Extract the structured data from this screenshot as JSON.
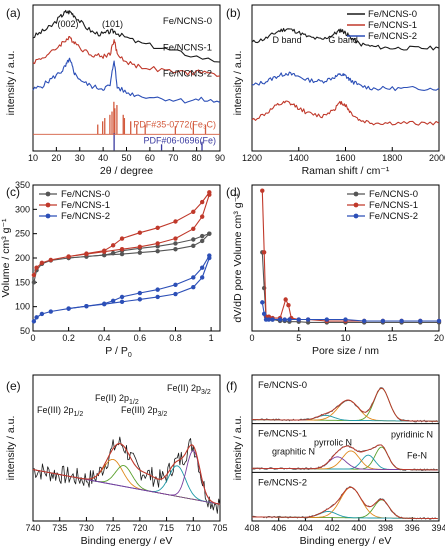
{
  "colors": {
    "black": "#1a1a1a",
    "red": "#c0392b",
    "blue": "#2c4fb7",
    "gray": "#555555",
    "fit_green": "#5aa02c",
    "fit_orange": "#e08a1e",
    "fit_purple": "#7b3fa0",
    "fit_teal": "#1f9aa8",
    "ref_fe3c": "#d35b3e",
    "ref_fe": "#3a3aa0"
  },
  "chart_data": [
    {
      "panel": "(a)",
      "type": "line",
      "xlabel": "2θ / degree",
      "ylabel": "intensity / a.u.",
      "xlim": [
        10,
        90
      ],
      "xticks": [
        10,
        20,
        30,
        40,
        50,
        60,
        70,
        80,
        90
      ],
      "peak_labels": [
        {
          "text": "(002)",
          "x": 25
        },
        {
          "text": "(101)",
          "x": 44
        }
      ],
      "series": [
        {
          "name": "Fe/NCNS-0",
          "color": "black",
          "x": [
            10,
            14,
            18,
            22,
            24,
            26,
            28,
            32,
            36,
            40,
            43,
            45,
            48,
            55,
            65,
            75,
            90
          ],
          "y": [
            0.82,
            0.86,
            0.9,
            0.97,
            1.0,
            1.0,
            0.97,
            0.9,
            0.85,
            0.84,
            0.86,
            0.86,
            0.83,
            0.78,
            0.74,
            0.7,
            0.64
          ]
        },
        {
          "name": "Fe/NCNS-1",
          "color": "red",
          "x": [
            10,
            14,
            18,
            22,
            24,
            26,
            28,
            32,
            36,
            40,
            43,
            44.7,
            46,
            50,
            55,
            65,
            75,
            82,
            90
          ],
          "y": [
            0.64,
            0.67,
            0.71,
            0.77,
            0.8,
            0.81,
            0.78,
            0.72,
            0.69,
            0.68,
            0.7,
            0.8,
            0.7,
            0.64,
            0.61,
            0.58,
            0.56,
            0.57,
            0.54
          ]
        },
        {
          "name": "Fe/NCNS-2",
          "color": "blue",
          "x": [
            10,
            14,
            18,
            22,
            24,
            25.5,
            26.5,
            28,
            32,
            36,
            40,
            43,
            44.7,
            46,
            50,
            55,
            65,
            75,
            82,
            90
          ],
          "y": [
            0.44,
            0.47,
            0.52,
            0.57,
            0.61,
            0.66,
            0.62,
            0.55,
            0.49,
            0.46,
            0.45,
            0.47,
            0.66,
            0.46,
            0.42,
            0.4,
            0.38,
            0.36,
            0.37,
            0.35
          ]
        }
      ],
      "reference_patterns": [
        {
          "name": "PDF#35-0772(Fe₃C)",
          "color": "ref_fe3c",
          "positions": [
            37.7,
            39.8,
            40.7,
            42.9,
            43.8,
            44.6,
            45.0,
            45.9,
            48.6,
            49.1,
            51.8,
            54.4,
            58.0,
            70.9,
            78.6,
            83.8
          ],
          "heights": [
            0.3,
            0.4,
            0.5,
            0.6,
            0.7,
            1.0,
            0.8,
            0.9,
            0.6,
            0.5,
            0.4,
            0.3,
            0.3,
            0.25,
            0.35,
            0.3
          ]
        },
        {
          "name": "PDF#06-0696(Fe)",
          "color": "ref_fe",
          "positions": [
            44.7,
            65.0,
            82.3
          ],
          "heights": [
            1.0,
            0.35,
            0.5
          ]
        }
      ]
    },
    {
      "panel": "(b)",
      "type": "line",
      "xlabel": "Raman shift / cm⁻¹",
      "ylabel": "intensity / a.u.",
      "xlim": [
        1200,
        2000
      ],
      "xticks": [
        1200,
        1400,
        1600,
        1800,
        2000
      ],
      "band_labels": [
        {
          "text": "D band",
          "x": 1350
        },
        {
          "text": "G band",
          "x": 1590
        }
      ],
      "series": [
        {
          "name": "Fe/NCNS-0",
          "color": "black",
          "x": [
            1200,
            1260,
            1310,
            1350,
            1390,
            1440,
            1500,
            1550,
            1580,
            1600,
            1620,
            1660,
            1720,
            1800,
            1900,
            2000
          ],
          "y": [
            0.78,
            0.81,
            0.86,
            0.88,
            0.86,
            0.82,
            0.8,
            0.84,
            0.87,
            0.85,
            0.82,
            0.77,
            0.75,
            0.74,
            0.74,
            0.74
          ]
        },
        {
          "name": "Fe/NCNS-1",
          "color": "red",
          "x": [
            1200,
            1260,
            1310,
            1350,
            1390,
            1440,
            1500,
            1550,
            1580,
            1600,
            1620,
            1660,
            1720,
            1800,
            1900,
            2000
          ],
          "y": [
            0.22,
            0.27,
            0.33,
            0.35,
            0.32,
            0.27,
            0.25,
            0.3,
            0.35,
            0.33,
            0.28,
            0.22,
            0.2,
            0.2,
            0.2,
            0.2
          ]
        },
        {
          "name": "Fe/NCNS-2",
          "color": "blue",
          "x": [
            1200,
            1260,
            1310,
            1350,
            1390,
            1440,
            1500,
            1550,
            1580,
            1600,
            1620,
            1660,
            1720,
            1800,
            1900,
            2000
          ],
          "y": [
            0.47,
            0.5,
            0.54,
            0.56,
            0.54,
            0.51,
            0.5,
            0.53,
            0.55,
            0.54,
            0.51,
            0.47,
            0.45,
            0.45,
            0.45,
            0.45
          ]
        }
      ]
    },
    {
      "panel": "(c)",
      "type": "line",
      "xlabel": "P / P",
      "xlabel_sub": "0",
      "ylabel": "Volume / cm³ g⁻¹",
      "xlim": [
        0.0,
        1.05
      ],
      "ylim": [
        50,
        350
      ],
      "xticks": [
        0.0,
        0.2,
        0.4,
        0.6,
        0.8,
        1.0
      ],
      "yticks": [
        50,
        100,
        150,
        200,
        250,
        300,
        350
      ],
      "series": [
        {
          "name": "Fe/NCNS-0",
          "color": "gray",
          "x": [
            0.005,
            0.02,
            0.05,
            0.1,
            0.2,
            0.3,
            0.4,
            0.5,
            0.6,
            0.7,
            0.8,
            0.9,
            0.95,
            0.99
          ],
          "y": [
            150,
            175,
            188,
            195,
            200,
            203,
            206,
            208,
            211,
            214,
            218,
            225,
            235,
            250
          ]
        },
        {
          "name": "Fe/NCNS-0",
          "color": "gray",
          "x": [
            0.99,
            0.95,
            0.9,
            0.8,
            0.7,
            0.6,
            0.5,
            0.45,
            0.4,
            0.3,
            0.2
          ],
          "y": [
            250,
            245,
            238,
            230,
            224,
            220,
            215,
            210,
            206,
            203,
            200
          ]
        },
        {
          "name": "Fe/NCNS-1",
          "color": "red",
          "x": [
            0.005,
            0.02,
            0.05,
            0.1,
            0.2,
            0.3,
            0.4,
            0.5,
            0.6,
            0.7,
            0.8,
            0.9,
            0.95,
            0.99
          ],
          "y": [
            165,
            180,
            190,
            196,
            203,
            208,
            213,
            218,
            223,
            230,
            240,
            260,
            285,
            330
          ]
        },
        {
          "name": "Fe/NCNS-1",
          "color": "red",
          "x": [
            0.99,
            0.95,
            0.9,
            0.8,
            0.7,
            0.6,
            0.5,
            0.45,
            0.4,
            0.3,
            0.2
          ],
          "y": [
            335,
            315,
            295,
            275,
            262,
            252,
            240,
            226,
            215,
            209,
            203
          ]
        },
        {
          "name": "Fe/NCNS-2",
          "color": "blue",
          "x": [
            0.005,
            0.02,
            0.05,
            0.1,
            0.2,
            0.3,
            0.4,
            0.5,
            0.6,
            0.7,
            0.8,
            0.9,
            0.95,
            0.99
          ],
          "y": [
            70,
            78,
            85,
            90,
            96,
            101,
            105,
            110,
            115,
            120,
            126,
            140,
            160,
            200
          ]
        },
        {
          "name": "Fe/NCNS-2",
          "color": "blue",
          "x": [
            0.99,
            0.95,
            0.9,
            0.8,
            0.7,
            0.6,
            0.5,
            0.45,
            0.4,
            0.3,
            0.2
          ],
          "y": [
            205,
            180,
            160,
            145,
            135,
            128,
            120,
            112,
            106,
            101,
            96
          ]
        }
      ],
      "legend": [
        {
          "name": "Fe/NCNS-0",
          "color": "gray"
        },
        {
          "name": "Fe/NCNS-1",
          "color": "red"
        },
        {
          "name": "Fe/NCNS-2",
          "color": "blue"
        }
      ]
    },
    {
      "panel": "(d)",
      "type": "line",
      "xlabel": "Pore size / nm",
      "ylabel": "dV/dD pore Volume cm³ g⁻¹",
      "xlim": [
        0,
        20
      ],
      "xticks": [
        0,
        5,
        10,
        15,
        20
      ],
      "series": [
        {
          "name": "Fe/NCNS-0",
          "color": "gray",
          "x": [
            1.1,
            1.3,
            1.5,
            1.8,
            2.2,
            3,
            3.5,
            4,
            5,
            6,
            8,
            10,
            12,
            14,
            16,
            18,
            20
          ],
          "y": [
            0.55,
            0.3,
            0.1,
            0.09,
            0.08,
            0.07,
            0.07,
            0.065,
            0.065,
            0.06,
            0.06,
            0.06,
            0.06,
            0.06,
            0.06,
            0.06,
            0.06
          ]
        },
        {
          "name": "Fe/NCNS-1",
          "color": "red",
          "x": [
            1.1,
            1.3,
            1.5,
            1.8,
            2.2,
            3,
            3.6,
            3.9,
            4.2,
            5,
            6,
            8,
            10,
            12,
            14,
            16,
            18,
            20
          ],
          "y": [
            0.98,
            0.55,
            0.1,
            0.1,
            0.09,
            0.09,
            0.22,
            0.18,
            0.09,
            0.08,
            0.08,
            0.07,
            0.07,
            0.07,
            0.07,
            0.07,
            0.07,
            0.07
          ]
        },
        {
          "name": "Fe/NCNS-2",
          "color": "blue",
          "x": [
            1.1,
            1.3,
            1.5,
            1.8,
            2.2,
            3,
            3.5,
            4,
            5,
            6,
            8,
            10,
            12,
            14,
            16,
            18,
            20
          ],
          "y": [
            0.2,
            0.12,
            0.08,
            0.08,
            0.08,
            0.08,
            0.08,
            0.08,
            0.08,
            0.08,
            0.08,
            0.08,
            0.07,
            0.07,
            0.07,
            0.07,
            0.07
          ]
        }
      ],
      "legend": [
        {
          "name": "Fe/NCNS-0",
          "color": "gray"
        },
        {
          "name": "Fe/NCNS-1",
          "color": "red"
        },
        {
          "name": "Fe/NCNS-2",
          "color": "blue"
        }
      ]
    },
    {
      "panel": "(e)",
      "type": "line",
      "xlabel": "Binding energy / eV",
      "ylabel": "intensity / a.u.",
      "xlim": [
        740,
        705
      ],
      "xticks": [
        740,
        735,
        730,
        725,
        720,
        715,
        710,
        705
      ],
      "annotations": [
        {
          "text": "Fe(III) 2p",
          "sub": "1/2",
          "x": 725
        },
        {
          "text": "Fe(II) 2p",
          "sub": "1/2",
          "x": 723
        },
        {
          "text": "Fe(III) 2p",
          "sub": "3/2",
          "x": 713
        },
        {
          "text": "Fe(II) 2p",
          "sub": "3/2",
          "x": 710
        }
      ]
    },
    {
      "panel": "(f)",
      "type": "line",
      "xlabel": "Binding energy / eV",
      "ylabel": "intensity / a.u.",
      "xlim": [
        408,
        394
      ],
      "xticks": [
        408,
        406,
        404,
        402,
        400,
        398,
        396,
        394
      ],
      "subpanels": [
        {
          "label": "Fe/NCNS-0"
        },
        {
          "label": "Fe/NCNS-1",
          "annotations": [
            "pyridinic N",
            "pyrrolic N",
            "graphitic N",
            "Fe-N"
          ]
        },
        {
          "label": "Fe/NCNS-2"
        }
      ]
    }
  ]
}
